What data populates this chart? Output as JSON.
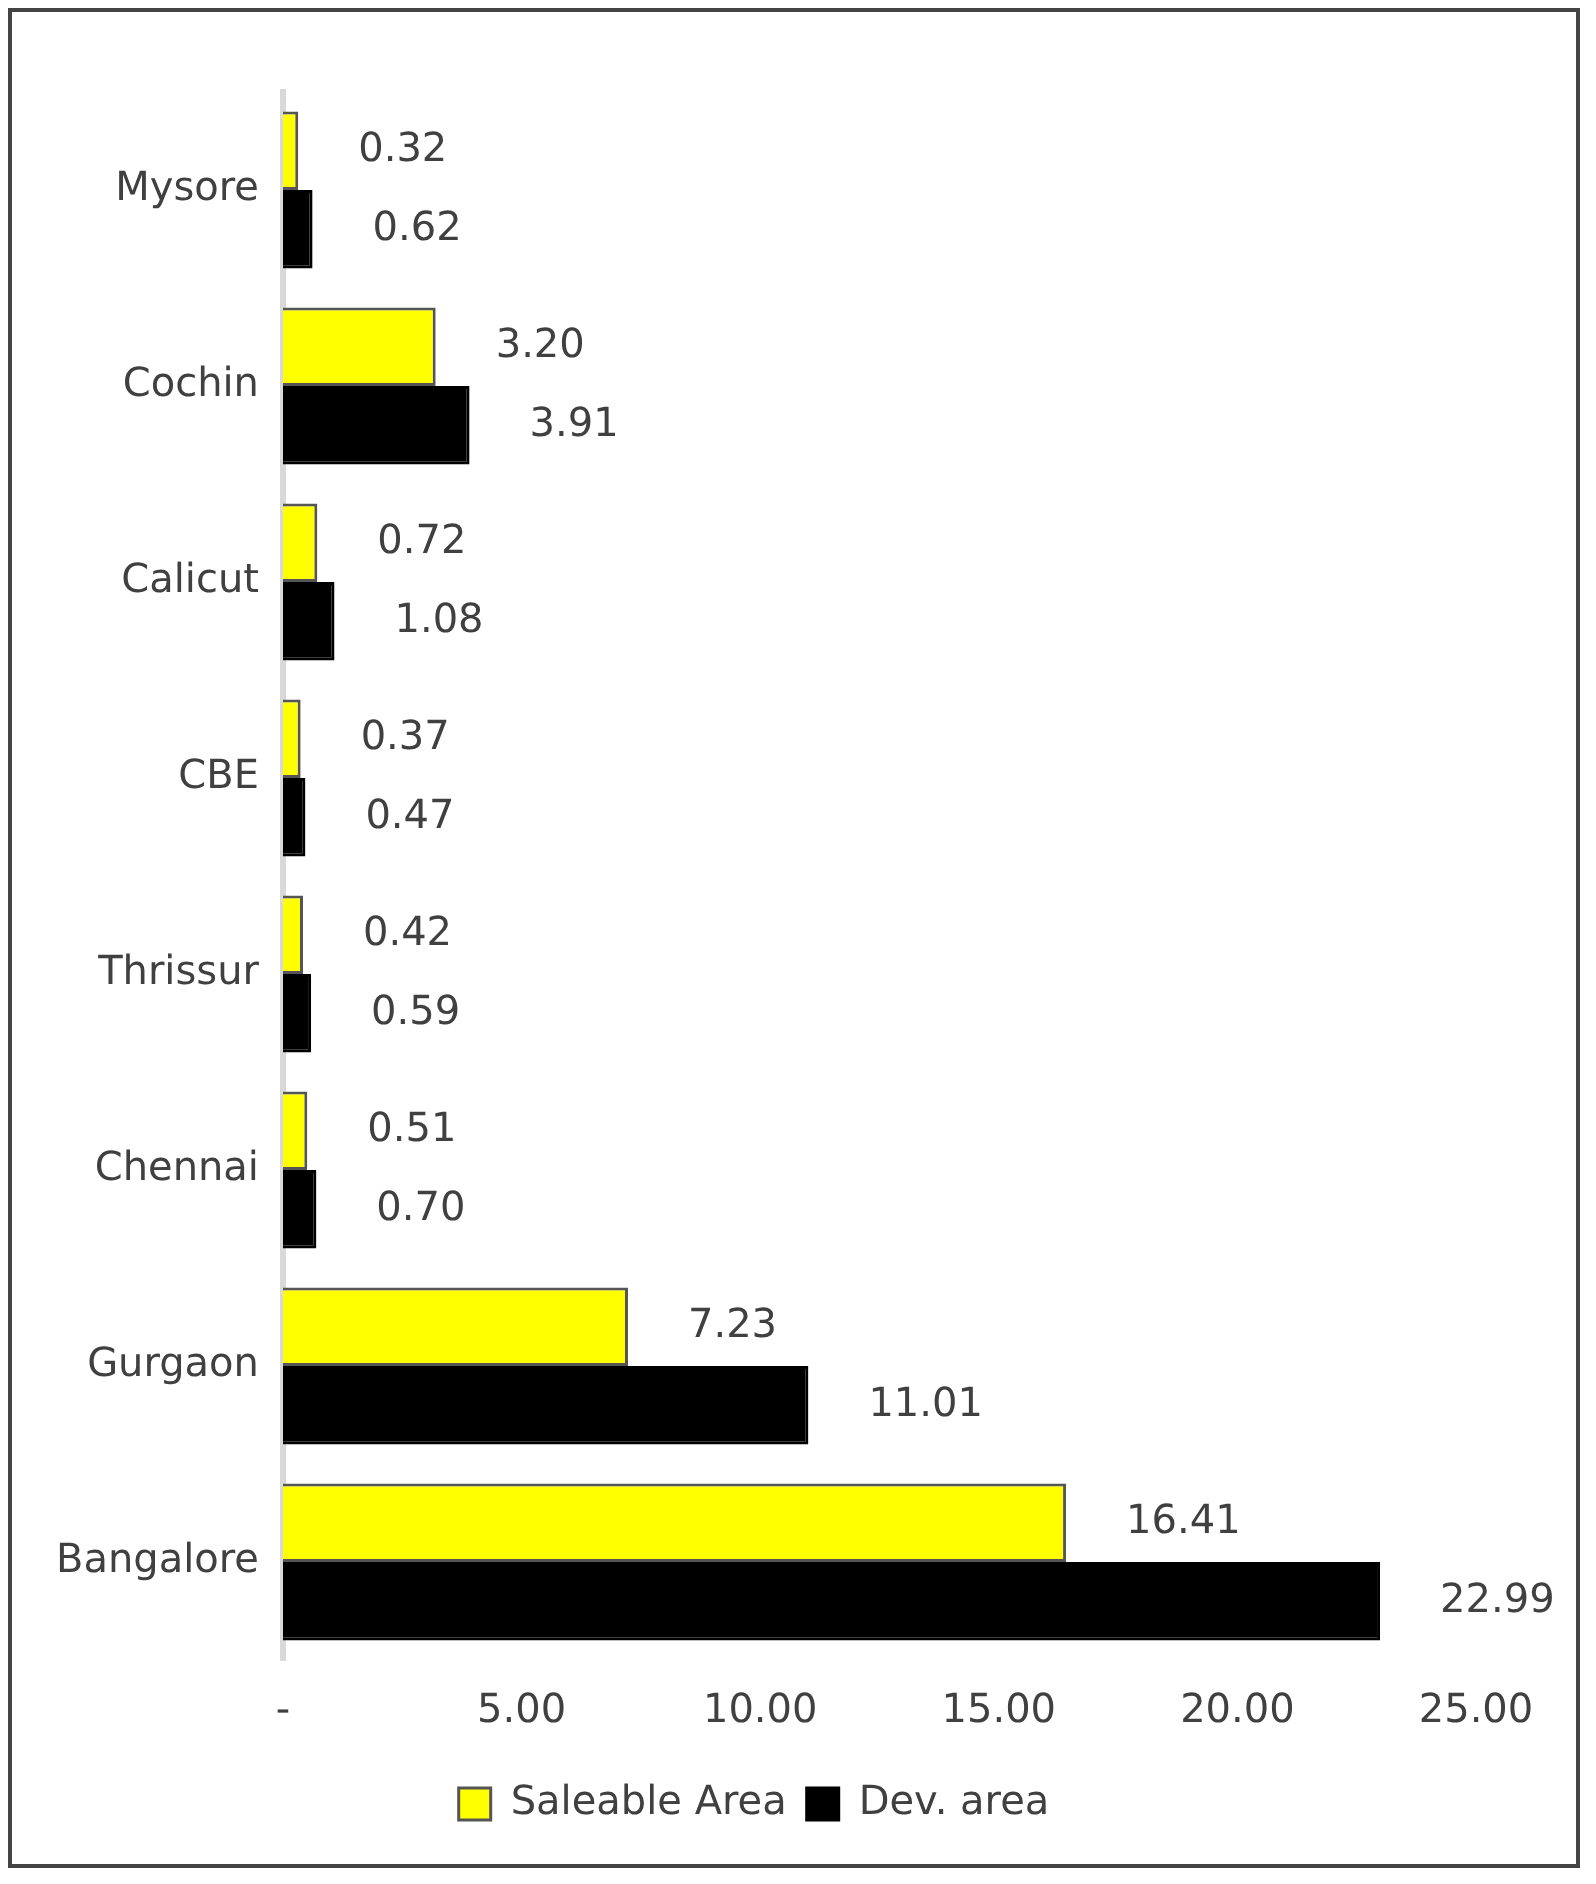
{
  "chart_data": {
    "type": "bar",
    "orientation": "horizontal",
    "categories": [
      "Mysore",
      "Cochin",
      "Calicut",
      "CBE",
      "Thrissur",
      "Chennai",
      "Gurgaon",
      "Bangalore"
    ],
    "series": [
      {
        "name": "Saleable Area",
        "color": "#ffff00",
        "values": [
          0.32,
          3.2,
          0.72,
          0.37,
          0.42,
          0.51,
          7.23,
          16.41
        ],
        "value_labels": [
          "0.32",
          "3.20",
          "0.72",
          "0.37",
          "0.42",
          "0.51",
          "7.23",
          "16.41"
        ]
      },
      {
        "name": "Dev. area",
        "color": "#000000",
        "values": [
          0.62,
          3.91,
          1.08,
          0.47,
          0.59,
          0.7,
          11.01,
          22.99
        ],
        "value_labels": [
          "0.62",
          "3.91",
          "1.08",
          "0.47",
          "0.59",
          "0.70",
          "11.01",
          "22.99"
        ]
      }
    ],
    "xlim": [
      0,
      25
    ],
    "xticks": [
      {
        "value": 0,
        "label": "-"
      },
      {
        "value": 5,
        "label": "5.00"
      },
      {
        "value": 10,
        "label": "10.00"
      },
      {
        "value": 15,
        "label": "15.00"
      },
      {
        "value": 20,
        "label": "20.00"
      },
      {
        "value": 25,
        "label": "25.00"
      }
    ],
    "grid": false,
    "legend": "bottom"
  }
}
